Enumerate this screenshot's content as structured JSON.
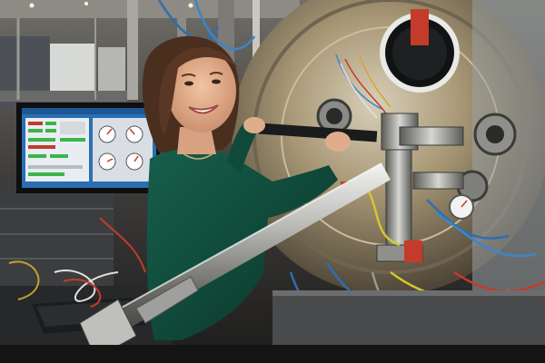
{
  "photo": {
    "subject": "scientist-at-beamline-apparatus",
    "monitor_panels": [
      "status-panel",
      "gauge-panel"
    ],
    "colors": {
      "sweater": "#0f4a3a",
      "chamber": "#a89876",
      "hair": "#4a2e1e",
      "monitor_bg": "#1d5f9e"
    }
  }
}
